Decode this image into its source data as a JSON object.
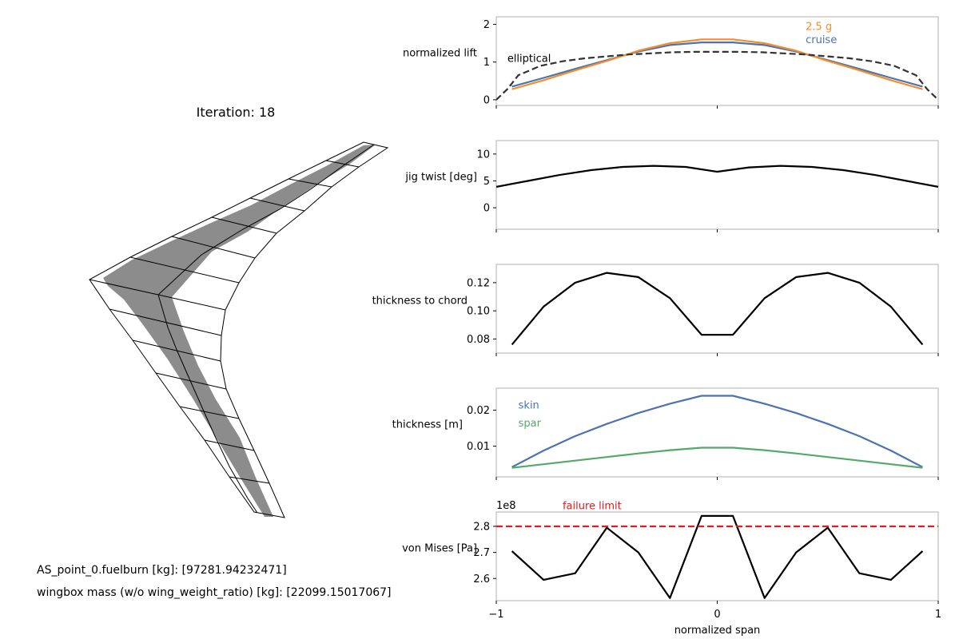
{
  "wing_panel": {
    "iteration_title": "Iteration: 18",
    "fuelburn_text": "AS_point_0.fuelburn [kg]: [97281.94232471]",
    "wingbox_mass_text": "wingbox mass (w/o wing_weight_ratio) [kg]: [22099.15017067]"
  },
  "colors": {
    "cruise": "#4c72b0",
    "g25": "#f28e2b",
    "elliptical": "#333333",
    "skin": "#4c72b0",
    "spar": "#55a868",
    "failure": "#e41a1c",
    "black": "#000000",
    "wingbox_fill": "#8c8c8c"
  },
  "chart_data": [
    {
      "id": "lift",
      "type": "line",
      "ylabel": "normalized lift",
      "xlim": [
        -1,
        1
      ],
      "ylim": [
        -0.15,
        2.2
      ],
      "yticks": [
        0,
        1,
        2
      ],
      "ytick_labels": [
        "0",
        "1",
        "2"
      ],
      "x": [
        -0.929,
        -0.786,
        -0.643,
        -0.5,
        -0.357,
        -0.214,
        -0.071,
        0.071,
        0.214,
        0.357,
        0.5,
        0.643,
        0.786,
        0.929
      ],
      "series": [
        {
          "name": "cruise",
          "values": [
            0.35,
            0.58,
            0.82,
            1.05,
            1.28,
            1.45,
            1.52,
            1.52,
            1.45,
            1.28,
            1.05,
            0.82,
            0.58,
            0.35
          ],
          "color_key": "cruise",
          "dash": "solid"
        },
        {
          "name": "2.5 g",
          "values": [
            0.28,
            0.52,
            0.78,
            1.03,
            1.3,
            1.5,
            1.6,
            1.6,
            1.5,
            1.3,
            1.03,
            0.78,
            0.52,
            0.28
          ],
          "color_key": "g25",
          "dash": "solid"
        },
        {
          "name": "elliptical",
          "x": [
            -1,
            -0.95,
            -0.9,
            -0.8,
            -0.7,
            -0.6,
            -0.5,
            -0.4,
            -0.3,
            -0.2,
            -0.1,
            0,
            0.1,
            0.2,
            0.3,
            0.4,
            0.5,
            0.6,
            0.7,
            0.8,
            0.9,
            0.95,
            1
          ],
          "values": [
            0,
            0.28,
            0.65,
            0.9,
            1.02,
            1.1,
            1.15,
            1.2,
            1.23,
            1.26,
            1.27,
            1.27,
            1.27,
            1.26,
            1.23,
            1.2,
            1.15,
            1.1,
            1.02,
            0.9,
            0.65,
            0.28,
            0
          ],
          "color_key": "elliptical",
          "dash": "dashed"
        }
      ],
      "annotations": [
        {
          "text": "elliptical",
          "x": -0.95,
          "y": 1.1,
          "color_key": "black"
        },
        {
          "text": "2.5 g",
          "x": 0.4,
          "y": 1.95,
          "color_key": "g25"
        },
        {
          "text": "cruise",
          "x": 0.4,
          "y": 1.6,
          "color_key": "cruise"
        }
      ],
      "grid": false,
      "x_ticks_labeled": false
    },
    {
      "id": "twist",
      "type": "line",
      "ylabel": "jig twist [deg]",
      "xlim": [
        -1,
        1
      ],
      "ylim": [
        -4,
        12.5
      ],
      "yticks": [
        0,
        5,
        10
      ],
      "ytick_labels": [
        "0",
        "5",
        "10"
      ],
      "x": [
        -1,
        -0.857,
        -0.714,
        -0.571,
        -0.429,
        -0.286,
        -0.143,
        0,
        0.143,
        0.286,
        0.429,
        0.571,
        0.714,
        0.857,
        1
      ],
      "series": [
        {
          "name": "",
          "values": [
            3.9,
            5.0,
            6.1,
            7.0,
            7.6,
            7.8,
            7.6,
            6.7,
            7.5,
            7.8,
            7.6,
            7.0,
            6.1,
            5.0,
            3.9
          ],
          "color_key": "black",
          "dash": "solid"
        }
      ],
      "annotations": [],
      "grid": false,
      "x_ticks_labeled": false
    },
    {
      "id": "tc",
      "type": "line",
      "ylabel": "thickness to chord",
      "xlim": [
        -1,
        1
      ],
      "ylim": [
        0.07,
        0.133
      ],
      "yticks": [
        0.08,
        0.1,
        0.12
      ],
      "ytick_labels": [
        "0.08",
        "0.10",
        "0.12"
      ],
      "x": [
        -0.929,
        -0.786,
        -0.643,
        -0.5,
        -0.357,
        -0.214,
        -0.071,
        0.071,
        0.214,
        0.357,
        0.5,
        0.643,
        0.786,
        0.929
      ],
      "series": [
        {
          "name": "",
          "values": [
            0.076,
            0.103,
            0.12,
            0.127,
            0.124,
            0.109,
            0.083,
            0.083,
            0.109,
            0.124,
            0.127,
            0.12,
            0.103,
            0.076
          ],
          "color_key": "black",
          "dash": "solid"
        }
      ],
      "annotations": [],
      "grid": false,
      "x_ticks_labeled": false
    },
    {
      "id": "thickness",
      "type": "line",
      "ylabel": "thickness [m]",
      "xlim": [
        -1,
        1
      ],
      "ylim": [
        0.0015,
        0.0261
      ],
      "yticks": [
        0.01,
        0.02
      ],
      "ytick_labels": [
        "0.01",
        "0.02"
      ],
      "x": [
        -0.929,
        -0.786,
        -0.643,
        -0.5,
        -0.357,
        -0.214,
        -0.071,
        0.071,
        0.214,
        0.357,
        0.5,
        0.643,
        0.786,
        0.929
      ],
      "series": [
        {
          "name": "skin",
          "values": [
            0.0042,
            0.0088,
            0.0128,
            0.0162,
            0.0192,
            0.0218,
            0.024,
            0.024,
            0.0218,
            0.0192,
            0.0162,
            0.0128,
            0.0088,
            0.0042
          ],
          "color_key": "skin",
          "dash": "solid"
        },
        {
          "name": "spar",
          "values": [
            0.004,
            0.005,
            0.006,
            0.007,
            0.008,
            0.0089,
            0.0096,
            0.0096,
            0.0089,
            0.008,
            0.007,
            0.006,
            0.005,
            0.004
          ],
          "color_key": "spar",
          "dash": "solid"
        }
      ],
      "annotations": [
        {
          "text": "skin",
          "x": -0.9,
          "y": 0.0215,
          "color_key": "skin"
        },
        {
          "text": "spar",
          "x": -0.9,
          "y": 0.0165,
          "color_key": "spar"
        }
      ],
      "grid": false,
      "x_ticks_labeled": false
    },
    {
      "id": "vonmises",
      "type": "line",
      "ylabel": "von Mises [Pa]",
      "xlabel": "normalized span",
      "offset_label": "1e8",
      "xlim": [
        -1,
        1
      ],
      "ylim": [
        2.515,
        2.855
      ],
      "yticks": [
        2.6,
        2.7,
        2.8
      ],
      "ytick_labels": [
        "2.6",
        "2.7",
        "2.8"
      ],
      "xticks": [
        -1,
        0,
        1
      ],
      "xtick_labels": [
        "−1",
        "0",
        "1"
      ],
      "x": [
        -0.929,
        -0.786,
        -0.643,
        -0.5,
        -0.357,
        -0.214,
        -0.071,
        0.071,
        0.214,
        0.357,
        0.5,
        0.643,
        0.786,
        0.929
      ],
      "series": [
        {
          "name": "",
          "values": [
            2.705,
            2.595,
            2.62,
            2.795,
            2.7,
            2.525,
            2.84,
            2.84,
            2.525,
            2.7,
            2.795,
            2.62,
            2.595,
            2.705
          ],
          "color_key": "black",
          "dash": "solid"
        },
        {
          "name": "failure limit",
          "x": [
            -1,
            1
          ],
          "values": [
            2.8,
            2.8
          ],
          "color_key": "failure",
          "dash": "dashed"
        }
      ],
      "annotations": [
        {
          "text": "failure limit",
          "x": -0.7,
          "y": 2.88,
          "color_key": "failure"
        }
      ],
      "grid": false,
      "x_ticks_labeled": true
    }
  ]
}
